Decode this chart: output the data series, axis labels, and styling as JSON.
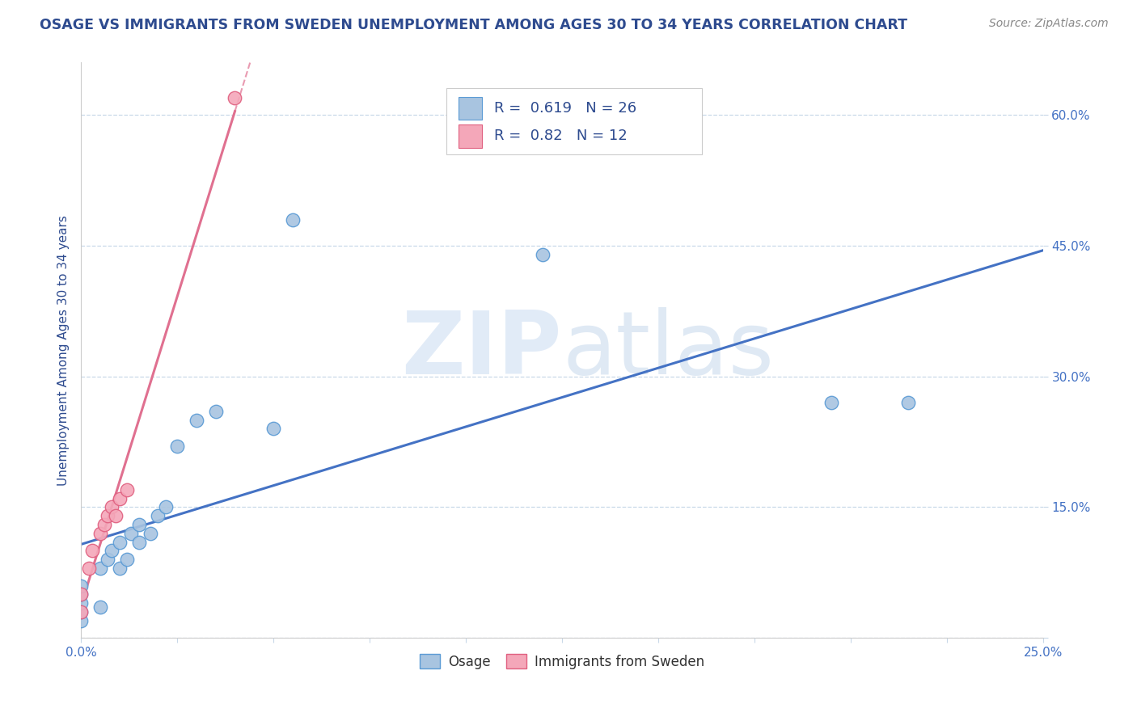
{
  "title": "OSAGE VS IMMIGRANTS FROM SWEDEN UNEMPLOYMENT AMONG AGES 30 TO 34 YEARS CORRELATION CHART",
  "source_text": "Source: ZipAtlas.com",
  "ylabel": "Unemployment Among Ages 30 to 34 years",
  "xlim": [
    0.0,
    0.25
  ],
  "ylim": [
    0.0,
    0.66
  ],
  "xticks": [
    0.0,
    0.025,
    0.05,
    0.075,
    0.1,
    0.125,
    0.15,
    0.175,
    0.2,
    0.225,
    0.25
  ],
  "xtick_labels": [
    "0.0%",
    "",
    "",
    "",
    "",
    "",
    "",
    "",
    "",
    "",
    "25.0%"
  ],
  "ytick_positions": [
    0.0,
    0.15,
    0.3,
    0.45,
    0.6
  ],
  "ytick_labels": [
    "",
    "15.0%",
    "30.0%",
    "45.0%",
    "60.0%"
  ],
  "osage_x": [
    0.0,
    0.0,
    0.0,
    0.0,
    0.0,
    0.005,
    0.005,
    0.007,
    0.008,
    0.01,
    0.01,
    0.012,
    0.013,
    0.015,
    0.015,
    0.018,
    0.02,
    0.022,
    0.025,
    0.03,
    0.035,
    0.05,
    0.055,
    0.12,
    0.195,
    0.215
  ],
  "osage_y": [
    0.02,
    0.03,
    0.04,
    0.05,
    0.06,
    0.035,
    0.08,
    0.09,
    0.1,
    0.08,
    0.11,
    0.09,
    0.12,
    0.11,
    0.13,
    0.12,
    0.14,
    0.15,
    0.22,
    0.25,
    0.26,
    0.24,
    0.48,
    0.44,
    0.27,
    0.27
  ],
  "sweden_x": [
    0.0,
    0.0,
    0.002,
    0.003,
    0.005,
    0.006,
    0.007,
    0.008,
    0.009,
    0.01,
    0.012,
    0.04
  ],
  "sweden_y": [
    0.03,
    0.05,
    0.08,
    0.1,
    0.12,
    0.13,
    0.14,
    0.15,
    0.14,
    0.16,
    0.17,
    0.62
  ],
  "osage_color": "#a8c4e0",
  "sweden_color": "#f4a7b9",
  "osage_edge_color": "#5b9bd5",
  "sweden_edge_color": "#e06080",
  "osage_line_color": "#4472c4",
  "sweden_line_color": "#e07090",
  "osage_R": 0.619,
  "osage_N": 26,
  "sweden_R": 0.82,
  "sweden_N": 12,
  "legend_color": "#2e4b8f",
  "background_color": "#ffffff",
  "title_color": "#2e4b8f",
  "grid_color": "#c8d8e8",
  "tick_color": "#4472c4",
  "source_color": "#888888"
}
